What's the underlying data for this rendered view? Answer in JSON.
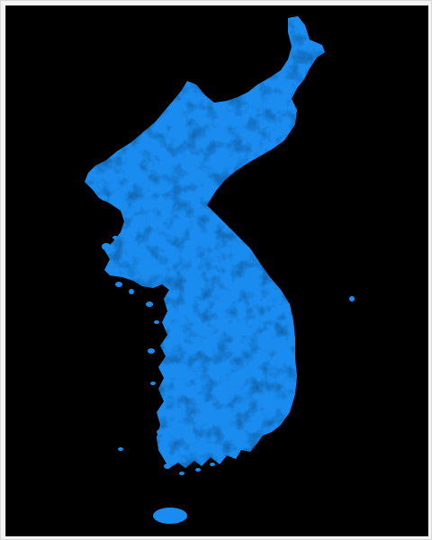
{
  "map": {
    "subject": "korean-peninsula",
    "colors": {
      "frame": "#f4f4f4",
      "background": "#000000",
      "land": "#1a8cf0",
      "land_texture": "#0a3a66"
    }
  }
}
